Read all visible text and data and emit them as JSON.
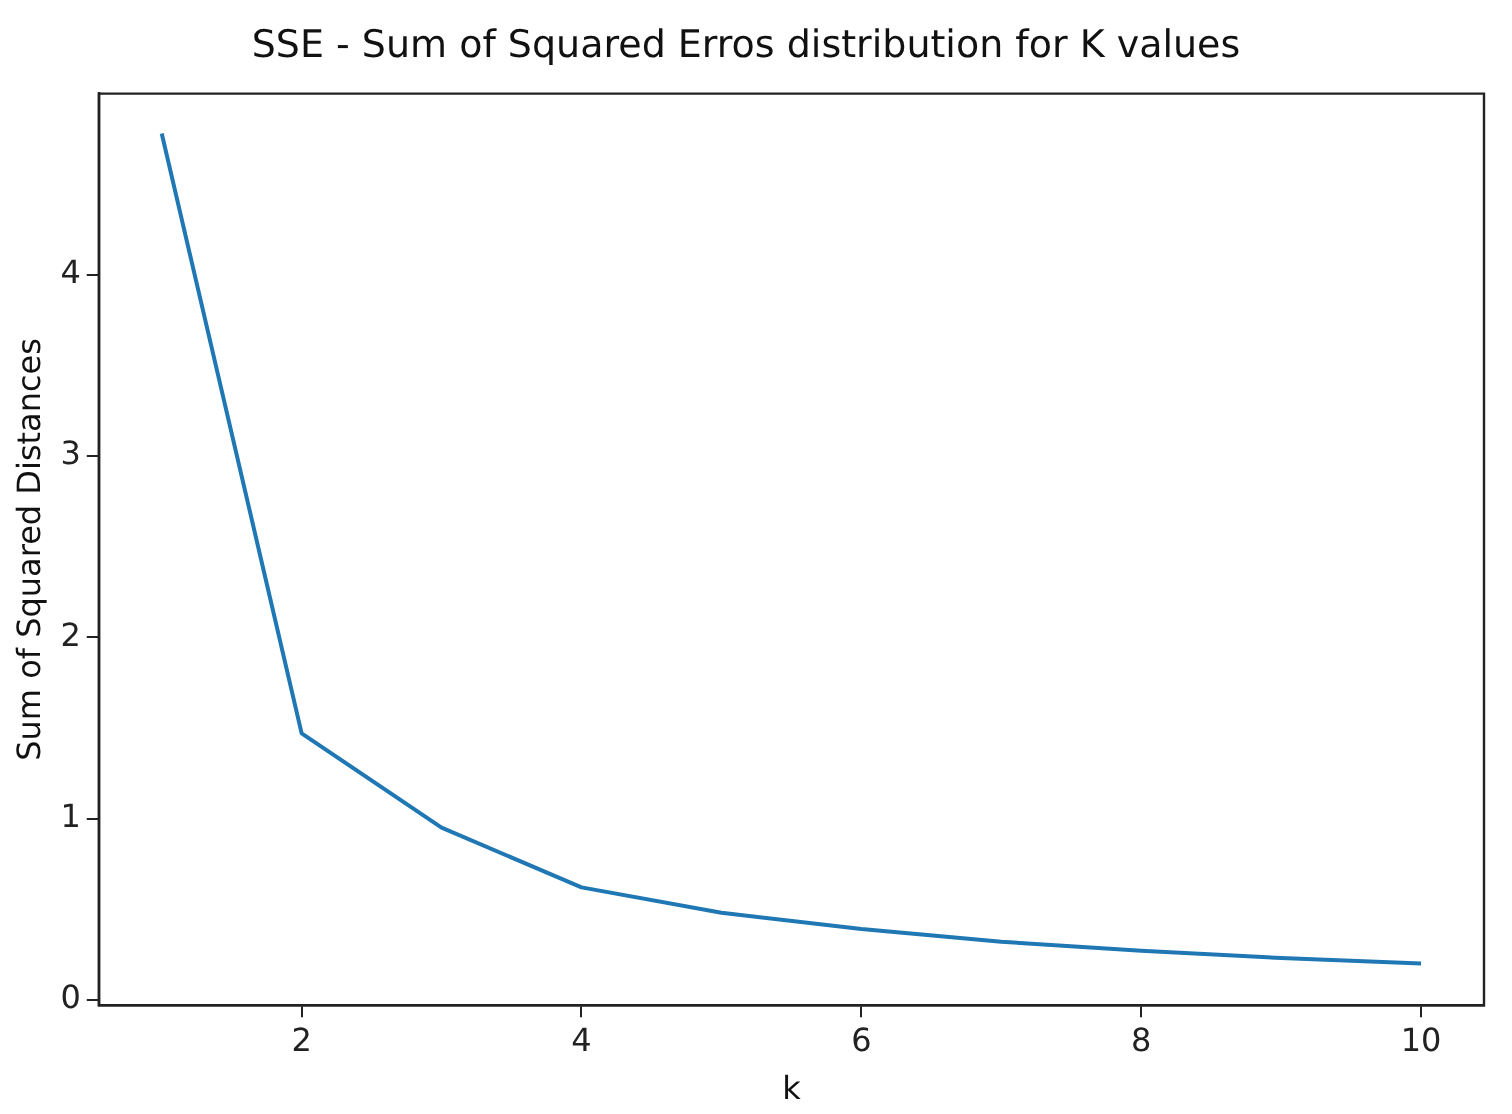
{
  "chart_data": {
    "type": "line",
    "title": "SSE - Sum of Squared Erros distribution for K values",
    "xlabel": "k",
    "ylabel": "Sum of Squared Distances",
    "x": [
      1,
      2,
      3,
      4,
      5,
      6,
      7,
      8,
      9,
      10
    ],
    "series": [
      {
        "color": "#1f77b4",
        "values": [
          4.78,
          1.47,
          0.95,
          0.62,
          0.48,
          0.39,
          0.32,
          0.27,
          0.23,
          0.2
        ]
      }
    ],
    "xlim": [
      0.55,
      10.45
    ],
    "xticks": [
      2,
      4,
      6,
      8,
      10
    ],
    "ylim": [
      -0.03,
      5.0
    ],
    "yticks": [
      0,
      1,
      2,
      3,
      4
    ],
    "grid": false,
    "legend": false,
    "marker": "none",
    "line_style": "solid"
  }
}
